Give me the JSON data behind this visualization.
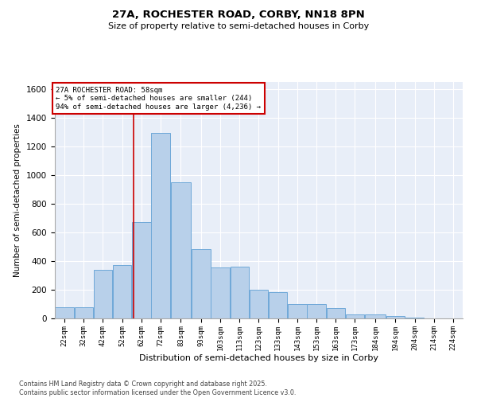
{
  "title_line1": "27A, ROCHESTER ROAD, CORBY, NN18 8PN",
  "title_line2": "Size of property relative to semi-detached houses in Corby",
  "xlabel": "Distribution of semi-detached houses by size in Corby",
  "ylabel": "Number of semi-detached properties",
  "footer_line1": "Contains HM Land Registry data © Crown copyright and database right 2025.",
  "footer_line2": "Contains public sector information licensed under the Open Government Licence v3.0.",
  "annotation_title": "27A ROCHESTER ROAD: 58sqm",
  "annotation_line1": "← 5% of semi-detached houses are smaller (244)",
  "annotation_line2": "94% of semi-detached houses are larger (4,236) →",
  "property_size": 58,
  "bar_color": "#b8d0ea",
  "bar_edge_color": "#6fa8d8",
  "vline_color": "#cc0000",
  "background_color": "#e8eef8",
  "bin_edges": [
    17,
    27,
    37,
    47,
    57,
    67,
    77,
    88,
    98,
    108,
    118,
    128,
    138,
    148,
    158,
    168,
    178,
    189,
    199,
    209,
    219,
    229
  ],
  "categories": [
    "22sqm",
    "32sqm",
    "42sqm",
    "52sqm",
    "62sqm",
    "72sqm",
    "83sqm",
    "93sqm",
    "103sqm",
    "113sqm",
    "123sqm",
    "133sqm",
    "143sqm",
    "153sqm",
    "163sqm",
    "173sqm",
    "184sqm",
    "194sqm",
    "204sqm",
    "214sqm",
    "224sqm"
  ],
  "values": [
    80,
    75,
    340,
    370,
    670,
    1295,
    950,
    480,
    355,
    360,
    200,
    185,
    100,
    100,
    70,
    30,
    25,
    15,
    5,
    0,
    0
  ],
  "ylim": [
    0,
    1650
  ],
  "yticks": [
    0,
    200,
    400,
    600,
    800,
    1000,
    1200,
    1400,
    1600
  ]
}
